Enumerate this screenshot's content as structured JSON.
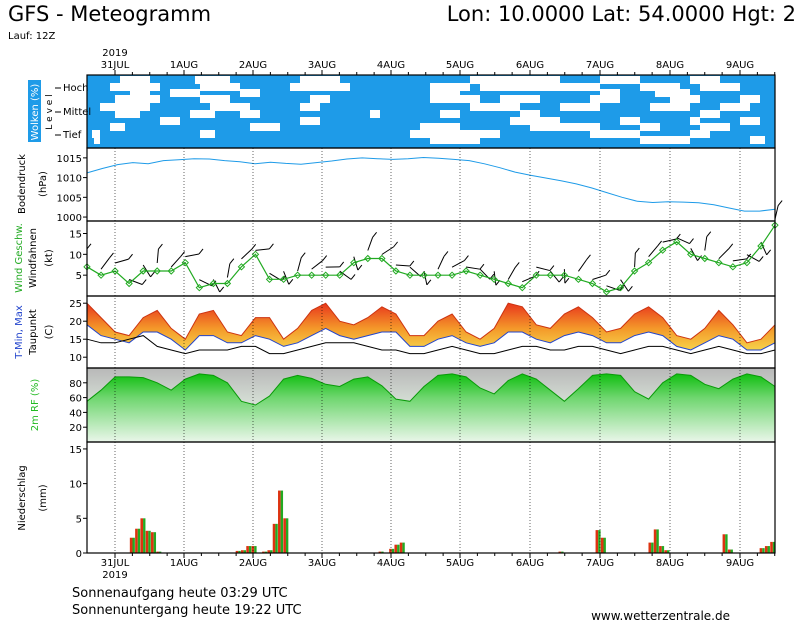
{
  "header": {
    "title": "GFS - Meteogramm",
    "coords": "Lon: 10.0000 Lat: 54.0000 Hgt: 2",
    "run": "Lauf: 12Z"
  },
  "footer": {
    "sunrise": "Sonnenaufgang heute 03:29 UTC",
    "sunset": "Sonnenuntergang heute 19:22 UTC",
    "source": "www.wetterzentrale.de"
  },
  "colors": {
    "cloud_sky": "#1e9be8",
    "pressure": "#1e9be8",
    "wind": "#22aa22",
    "tmax": "#ee6622",
    "tmin": "#2244cc",
    "humidity": "#22bb22",
    "rain": "#22aa22",
    "rain_red": "#dd3311"
  },
  "chart_data": {
    "type": "meteogram",
    "year": "2019",
    "dates": [
      "31JUL",
      "1AUG",
      "2AUG",
      "3AUG",
      "4AUG",
      "5AUG",
      "6AUG",
      "7AUG",
      "8AUG",
      "9AUG"
    ],
    "clouds": {
      "ylabel": "Wolken (%)",
      "side_label": "L e v e l",
      "levels": [
        "Hoch",
        "Mittel",
        "Tief"
      ]
    },
    "pressure": {
      "ylabel": "Bodendruck",
      "unit": "(hPa)",
      "ticks": [
        1000,
        1005,
        1010,
        1015
      ],
      "ylim": [
        999,
        1017.5
      ],
      "values": [
        1011.2,
        1012.3,
        1013.3,
        1013.8,
        1013.5,
        1014.3,
        1014.5,
        1014.8,
        1014.7,
        1014.3,
        1014.0,
        1013.5,
        1013.9,
        1013.6,
        1013.4,
        1013.8,
        1014.2,
        1014.7,
        1015.0,
        1014.8,
        1014.6,
        1014.8,
        1015.1,
        1014.9,
        1014.6,
        1014.3,
        1013.5,
        1012.5,
        1011.4,
        1010.6,
        1009.9,
        1009.2,
        1008.4,
        1007.4,
        1006.2,
        1005.0,
        1004.0,
        1003.7,
        1003.9,
        1003.8,
        1003.6,
        1003.1,
        1002.3,
        1001.5,
        1001.5,
        1002.0
      ]
    },
    "wind": {
      "ylabel": "Wind Geschw.",
      "ylabel2": "Windfahnen",
      "unit": "(kt)",
      "ticks": [
        5,
        10,
        15
      ],
      "ylim": [
        0,
        18
      ],
      "values": [
        7,
        5,
        6,
        3,
        6,
        6,
        6,
        8,
        2,
        3,
        3,
        7,
        10,
        4,
        4,
        5,
        5,
        5,
        5,
        8,
        9,
        9,
        6,
        5,
        5,
        5,
        5,
        6,
        5,
        4,
        3,
        2,
        5,
        5,
        5,
        4,
        3,
        1,
        2,
        6,
        8,
        11,
        13,
        10,
        9,
        8,
        7,
        8,
        12,
        17
      ]
    },
    "temperature": {
      "ylabel": "T-Min, Max",
      "ylabel2": "Taupunkt",
      "unit": "(C)",
      "ticks": [
        10,
        15,
        20,
        25
      ],
      "ylim": [
        7,
        27
      ],
      "tmax": [
        25,
        21,
        17,
        16,
        21,
        23,
        18,
        15,
        22,
        23,
        17,
        16,
        21,
        21,
        15,
        18,
        23,
        25,
        20,
        19,
        21,
        24,
        22,
        16,
        16,
        20,
        22,
        17,
        15,
        18,
        25,
        24,
        19,
        18,
        22,
        24,
        21,
        17,
        18,
        22,
        24,
        21,
        16,
        15,
        18,
        23,
        19,
        14,
        15,
        19
      ],
      "tmin": [
        19,
        16,
        15,
        14,
        17,
        17,
        15,
        12,
        16,
        16,
        14,
        14,
        16,
        15,
        13,
        14,
        16,
        18,
        16,
        15,
        16,
        17,
        17,
        13,
        13,
        15,
        16,
        14,
        13,
        14,
        17,
        17,
        15,
        14,
        16,
        17,
        16,
        14,
        14,
        16,
        17,
        16,
        13,
        12,
        14,
        16,
        15,
        12,
        12,
        14
      ],
      "dew": [
        15,
        14,
        14,
        15,
        16,
        13,
        12,
        11,
        12,
        12,
        12,
        13,
        13,
        11,
        11,
        12,
        13,
        14,
        14,
        14,
        13,
        12,
        12,
        11,
        11,
        12,
        13,
        12,
        11,
        11,
        12,
        13,
        13,
        12,
        12,
        13,
        13,
        12,
        11,
        12,
        13,
        13,
        12,
        11,
        12,
        13,
        12,
        11,
        11,
        12
      ]
    },
    "humidity": {
      "ylabel": "2m RF (%)",
      "ticks": [
        20,
        40,
        60,
        80
      ],
      "ylim": [
        0,
        100
      ],
      "values": [
        55,
        70,
        88,
        88,
        87,
        80,
        70,
        85,
        92,
        90,
        80,
        55,
        50,
        62,
        85,
        90,
        86,
        78,
        75,
        85,
        88,
        76,
        58,
        55,
        75,
        90,
        92,
        88,
        73,
        65,
        83,
        92,
        85,
        70,
        55,
        72,
        90,
        92,
        90,
        68,
        58,
        80,
        92,
        90,
        78,
        72,
        85,
        92,
        88,
        75
      ]
    },
    "precip": {
      "ylabel": "Niederschlag",
      "unit": "(mm)",
      "ticks": [
        0,
        5,
        10,
        15
      ],
      "ylim": [
        0,
        16
      ],
      "values": [
        0,
        0,
        0,
        0,
        0,
        0,
        0,
        0,
        2.2,
        3.5,
        5,
        3.2,
        3,
        0.2,
        0,
        0,
        0,
        0,
        0,
        0,
        0,
        0,
        0,
        0,
        0,
        0,
        0,
        0,
        0.3,
        0.4,
        1,
        1,
        0,
        0.2,
        0.4,
        4.2,
        9,
        5,
        0,
        0,
        0,
        0,
        0,
        0,
        0,
        0,
        0,
        0,
        0,
        0,
        0,
        0,
        0,
        0,
        0,
        0.2,
        0,
        0.6,
        1.2,
        1.5,
        0,
        0,
        0,
        0,
        0,
        0,
        0,
        0,
        0,
        0,
        0,
        0,
        0,
        0,
        0,
        0,
        0,
        0,
        0,
        0,
        0,
        0,
        0,
        0,
        0,
        0,
        0,
        0,
        0,
        0.2,
        0,
        0,
        0,
        0,
        0,
        0,
        3.3,
        2.2,
        0,
        0,
        0,
        0,
        0,
        0,
        0,
        0,
        1.5,
        3.4,
        1,
        0.4,
        0,
        0,
        0,
        0,
        0,
        0,
        0,
        0,
        0,
        0,
        2.7,
        0.5,
        0,
        0,
        0,
        0,
        0,
        0.7,
        1,
        1.6
      ]
    }
  }
}
